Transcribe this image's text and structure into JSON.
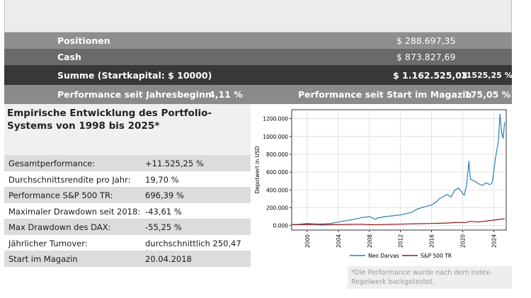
{
  "summary": {
    "positions": {
      "label": "Positionen",
      "value": "$ 288.697,35"
    },
    "cash": {
      "label": "Cash",
      "value": "$ 873.827,69"
    },
    "summe": {
      "label": "Summe (Startkapital: $ 10000)",
      "value": "$ 1.162.525,03",
      "percent": "11525,25 %"
    },
    "performance": {
      "ytd_label": "Performance seit Jahresbeginn",
      "ytd_value": "4,11 %",
      "magazin_label": "Performance seit Start im Magazin",
      "magazin_value": "175,05 %"
    }
  },
  "panel": {
    "title": "Empirische Entwicklung des Portfolio-Systems von 1998 bis 2025*",
    "stats": [
      {
        "label": "Gesamtperformance:",
        "value": "+11.525,25 %"
      },
      {
        "label": "Durchschnittsrendite pro Jahr:",
        "value": "19,70 %"
      },
      {
        "label": "Performance S&P 500 TR:",
        "value": "696,39 %"
      },
      {
        "label": "Maximaler Drawdown seit 2018:",
        "value": "-43,61 %"
      },
      {
        "label": "Max Drawdown des DAX:",
        "value": "-55,25 %"
      },
      {
        "label": "Jährlicher Turnover:",
        "value": "durchschnittlich 250,47 %"
      },
      {
        "label": "Start im Magazin",
        "value": "20.04.2018"
      }
    ]
  },
  "note": "*Die Performance wurde nach dem Index-Regelwerk backgetestet.",
  "colors": {
    "neo": "#2a7fb4",
    "sp500": "#8b1a1a"
  },
  "chart_data": {
    "type": "line",
    "title": "",
    "xlabel": "",
    "ylabel": "Depotwert in USD",
    "xlim": [
      1998.0,
      2025.6
    ],
    "ylim": [
      -50000,
      1300000
    ],
    "grid": true,
    "legend": "bottom",
    "xticks": [
      2000,
      2004,
      2008,
      2012,
      2016,
      2020,
      2024
    ],
    "xtick_labels": [
      "2000",
      "2004",
      "2008",
      "2012",
      "2016",
      "2020",
      "2024"
    ],
    "yticks": [
      0,
      200000,
      400000,
      600000,
      800000,
      1000000,
      1200000
    ],
    "ytick_labels": [
      "0.000",
      "200.000",
      "400.000",
      "600.000",
      "800.000",
      "1000.000",
      "1200.000"
    ],
    "series": [
      {
        "name": "Neo Darvas",
        "x": [
          1998,
          1999,
          2000,
          2001,
          2002,
          2003,
          2004,
          2005,
          2006,
          2007,
          2008,
          2008.8,
          2009,
          2010,
          2011,
          2012,
          2013,
          2013.5,
          2014,
          2015,
          2016,
          2016.5,
          2017,
          2018,
          2018.5,
          2019,
          2019.5,
          2020,
          2020.2,
          2020.5,
          2020.8,
          2021,
          2021.5,
          2022,
          2022.5,
          2023,
          2023.5,
          2023.8,
          2024,
          2024.2,
          2024.4,
          2024.6,
          2024.8,
          2025,
          2025.2,
          2025.4
        ],
        "y": [
          10000,
          15000,
          25000,
          20000,
          18000,
          25000,
          40000,
          55000,
          70000,
          90000,
          100000,
          70000,
          85000,
          100000,
          110000,
          120000,
          140000,
          150000,
          180000,
          210000,
          230000,
          260000,
          300000,
          350000,
          320000,
          400000,
          420000,
          360000,
          340000,
          450000,
          720000,
          520000,
          500000,
          470000,
          450000,
          480000,
          460000,
          480000,
          600000,
          750000,
          850000,
          950000,
          1250000,
          1050000,
          980000,
          1160000
        ]
      },
      {
        "name": "S&P 500 TR",
        "x": [
          1998,
          2000,
          2001,
          2002,
          2003,
          2005,
          2007,
          2008,
          2009,
          2010,
          2012,
          2014,
          2016,
          2018,
          2019,
          2020,
          2020.3,
          2021,
          2022,
          2023,
          2024,
          2025,
          2025.4
        ],
        "y": [
          10000,
          13000,
          11000,
          9000,
          10000,
          13000,
          15000,
          10000,
          11000,
          13000,
          16000,
          21000,
          24000,
          29000,
          34000,
          36000,
          32000,
          48000,
          40000,
          50000,
          62000,
          72000,
          78000
        ]
      }
    ]
  }
}
